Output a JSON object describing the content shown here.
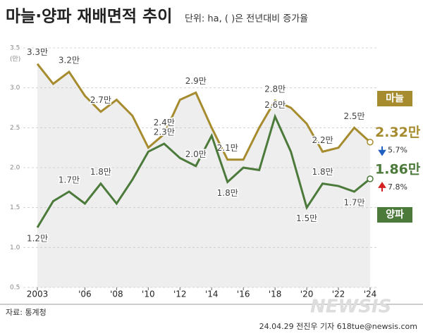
{
  "chart_data": {
    "type": "line",
    "title": "마늘·양파 재배면적 추이",
    "subtitle": "단위: ha, ( )은 전년대비 증가율",
    "y_axis_label": "(만)",
    "categories": [
      "2003",
      null,
      null,
      "'06",
      null,
      "'08",
      null,
      "'10",
      null,
      "'12",
      null,
      "'14",
      null,
      "'16",
      null,
      "'18",
      null,
      "'20",
      null,
      "'22",
      null,
      "'24"
    ],
    "series": [
      {
        "name": "마늘",
        "color": "#a68c2e",
        "change": "5.7%",
        "change_direction": "down",
        "values": [
          3.3,
          3.05,
          3.2,
          2.9,
          2.7,
          2.85,
          2.65,
          2.25,
          2.42,
          2.85,
          2.94,
          2.5,
          2.1,
          2.1,
          2.5,
          2.84,
          2.75,
          2.55,
          2.2,
          2.25,
          2.5,
          2.32
        ],
        "value_labels": [
          "3.3만",
          null,
          "3.2만",
          null,
          "2.7만",
          null,
          null,
          null,
          "2.4만",
          null,
          "2.9만",
          null,
          "2.1만",
          null,
          null,
          "2.8만",
          null,
          null,
          "2.2만",
          null,
          "2.5만",
          "2.32만"
        ]
      },
      {
        "name": "양파",
        "color": "#4b7a3a",
        "change": "7.8%",
        "change_direction": "up",
        "values": [
          1.25,
          1.58,
          1.7,
          1.55,
          1.8,
          1.55,
          1.85,
          2.2,
          2.3,
          2.12,
          2.02,
          2.4,
          1.82,
          2.0,
          1.97,
          2.64,
          2.2,
          1.5,
          1.8,
          1.77,
          1.7,
          1.86
        ],
        "value_labels": [
          "1.2만",
          null,
          "1.7만",
          null,
          "1.8만",
          null,
          null,
          null,
          "2.3만",
          null,
          "2.0만",
          null,
          "1.8만",
          null,
          null,
          "2.6만",
          null,
          "1.5만",
          "1.8만",
          null,
          "1.7만",
          "1.86만"
        ]
      }
    ],
    "ylim": [
      0.5,
      3.5
    ],
    "yticks": [
      0.5,
      {
        "value": 1,
        "label": "1.0"
      },
      1.5,
      {
        "value": 2,
        "label": "2.0"
      },
      2.5,
      {
        "value": 3,
        "label": "3.0"
      },
      3.5
    ],
    "grid": true,
    "source": "자료: 통계청",
    "credit": "24.04.29 전진우 기자 618tue@newsis.com",
    "watermark": "NEWSIS"
  }
}
